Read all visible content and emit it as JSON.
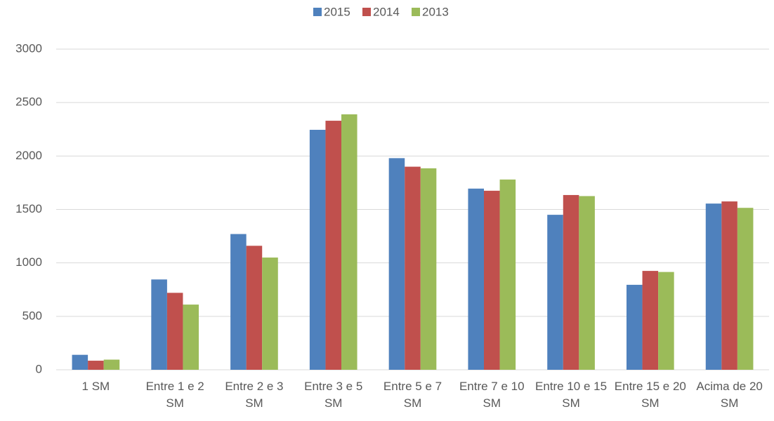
{
  "chart_data": {
    "type": "bar",
    "categories": [
      "1 SM",
      "Entre 1 e 2 SM",
      "Entre 2 e 3 SM",
      "Entre 3 e 5 SM",
      "Entre 5 e 7 SM",
      "Entre 7 e 10 SM",
      "Entre 10 e 15 SM",
      "Entre 15 e 20 SM",
      "Acima de 20 SM"
    ],
    "series": [
      {
        "name": "2015",
        "color": "#4f81bd",
        "values": [
          140,
          845,
          1270,
          2245,
          1980,
          1695,
          1450,
          795,
          1555
        ]
      },
      {
        "name": "2014",
        "color": "#c0504d",
        "values": [
          85,
          720,
          1160,
          2330,
          1900,
          1675,
          1635,
          925,
          1575
        ]
      },
      {
        "name": "2013",
        "color": "#9bbb59",
        "values": [
          95,
          610,
          1050,
          2390,
          1885,
          1780,
          1625,
          915,
          1515
        ]
      }
    ],
    "ylim": [
      0,
      3000
    ],
    "yticks": [
      0,
      500,
      1000,
      1500,
      2000,
      2500,
      3000
    ],
    "grid": true,
    "legend": "top"
  }
}
